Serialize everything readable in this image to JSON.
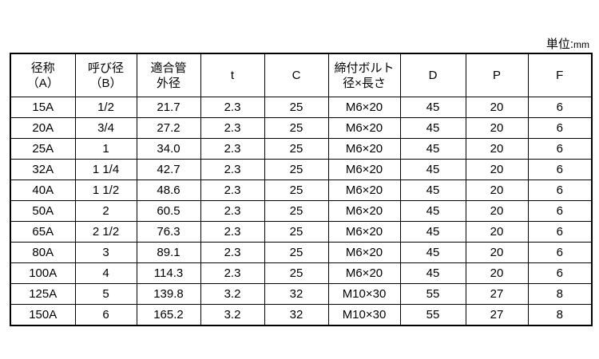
{
  "unit": {
    "label": "単位:",
    "value": "mm"
  },
  "table": {
    "headers": [
      [
        "径称",
        "（A）"
      ],
      [
        "呼び径",
        "（B）"
      ],
      [
        "適合管",
        "外径"
      ],
      [
        "t"
      ],
      [
        "C"
      ],
      [
        "締付ボルト",
        "径×長さ"
      ],
      [
        "D"
      ],
      [
        "P"
      ],
      [
        "F"
      ]
    ],
    "rows": [
      [
        "15A",
        "1/2",
        "21.7",
        "2.3",
        "25",
        "M6×20",
        "45",
        "20",
        "6"
      ],
      [
        "20A",
        "3/4",
        "27.2",
        "2.3",
        "25",
        "M6×20",
        "45",
        "20",
        "6"
      ],
      [
        "25A",
        "1",
        "34.0",
        "2.3",
        "25",
        "M6×20",
        "45",
        "20",
        "6"
      ],
      [
        "32A",
        "1 1/4",
        "42.7",
        "2.3",
        "25",
        "M6×20",
        "45",
        "20",
        "6"
      ],
      [
        "40A",
        "1 1/2",
        "48.6",
        "2.3",
        "25",
        "M6×20",
        "45",
        "20",
        "6"
      ],
      [
        "50A",
        "2",
        "60.5",
        "2.3",
        "25",
        "M6×20",
        "45",
        "20",
        "6"
      ],
      [
        "65A",
        "2 1/2",
        "76.3",
        "2.3",
        "25",
        "M6×20",
        "45",
        "20",
        "6"
      ],
      [
        "80A",
        "3",
        "89.1",
        "2.3",
        "25",
        "M6×20",
        "45",
        "20",
        "6"
      ],
      [
        "100A",
        "4",
        "114.3",
        "2.3",
        "25",
        "M6×20",
        "45",
        "20",
        "6"
      ],
      [
        "125A",
        "5",
        "139.8",
        "3.2",
        "32",
        "M10×30",
        "55",
        "27",
        "8"
      ],
      [
        "150A",
        "6",
        "165.2",
        "3.2",
        "32",
        "M10×30",
        "55",
        "27",
        "8"
      ]
    ]
  }
}
